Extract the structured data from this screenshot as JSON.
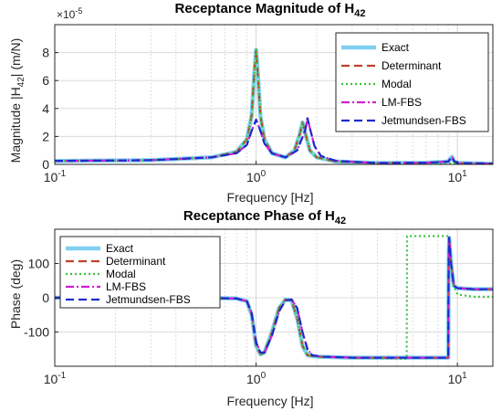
{
  "chart_data": [
    {
      "type": "line",
      "title": "Receptance Magnitude of ",
      "title_symbol": "H",
      "title_subscript": "42",
      "xlabel": "Frequency [Hz]",
      "ylabel": "Magnitude  |H",
      "ylabel_subscript": "42",
      "ylabel_unit": "|  (m/N)",
      "x_scale": "log",
      "xlim": [
        0.1,
        15
      ],
      "ylim": [
        0,
        10
      ],
      "y_exponent_label": "×10",
      "y_exponent_power": "-5",
      "x_ticks": [
        {
          "value": 0.1,
          "base": "10",
          "power": "-1"
        },
        {
          "value": 1,
          "base": "10",
          "power": "0"
        },
        {
          "value": 10,
          "base": "10",
          "power": "1"
        }
      ],
      "y_ticks": [
        0,
        2,
        4,
        6,
        8
      ],
      "grid": true,
      "legend_position": "top-right",
      "series": [
        {
          "name": "Exact",
          "color": "#7fd0f0",
          "style": "solid",
          "x": [
            0.1,
            0.3,
            0.6,
            0.8,
            0.9,
            0.95,
            0.98,
            1.0,
            1.02,
            1.05,
            1.1,
            1.2,
            1.4,
            1.55,
            1.65,
            1.7,
            1.75,
            1.85,
            2.0,
            2.5,
            4,
            7,
            9,
            9.4,
            9.6,
            10,
            15
          ],
          "y": [
            0.25,
            0.3,
            0.5,
            0.9,
            1.8,
            3.5,
            6.5,
            8.2,
            6.5,
            3.5,
            1.8,
            0.8,
            0.5,
            1.0,
            2.2,
            3.0,
            2.3,
            1.0,
            0.5,
            0.2,
            0.1,
            0.12,
            0.2,
            0.55,
            0.25,
            0.1,
            0.05
          ]
        },
        {
          "name": "Determinant",
          "color": "#c0402a",
          "style": "dash",
          "x": [
            0.1,
            0.3,
            0.6,
            0.8,
            0.9,
            0.95,
            0.98,
            1.0,
            1.02,
            1.05,
            1.1,
            1.2,
            1.4,
            1.55,
            1.65,
            1.7,
            1.75,
            1.85,
            2.0,
            2.5,
            4,
            7,
            9,
            9.4,
            9.6,
            10,
            15
          ],
          "y": [
            0.25,
            0.3,
            0.5,
            0.9,
            1.8,
            3.5,
            6.5,
            8.2,
            6.5,
            3.5,
            1.8,
            0.8,
            0.5,
            1.0,
            2.2,
            3.0,
            2.3,
            1.0,
            0.5,
            0.2,
            0.1,
            0.12,
            0.2,
            0.55,
            0.25,
            0.1,
            0.05
          ]
        },
        {
          "name": "Modal",
          "color": "#3cc43c",
          "style": "dot",
          "x": [
            0.1,
            0.3,
            0.6,
            0.8,
            0.9,
            0.95,
            0.98,
            1.0,
            1.02,
            1.05,
            1.1,
            1.2,
            1.4,
            1.55,
            1.65,
            1.7,
            1.75,
            1.85,
            2.0,
            2.5,
            4,
            7,
            15
          ],
          "y": [
            0.25,
            0.3,
            0.5,
            0.9,
            1.8,
            3.5,
            6.5,
            8.2,
            6.5,
            3.5,
            1.8,
            0.8,
            0.5,
            1.0,
            2.2,
            3.0,
            2.3,
            1.0,
            0.5,
            0.2,
            0.1,
            0.08,
            0.05
          ]
        },
        {
          "name": "LM-FBS",
          "color": "#d01ed0",
          "style": "dashdot",
          "x": [
            0.1,
            0.3,
            0.6,
            0.8,
            0.9,
            0.95,
            1.0,
            1.05,
            1.1,
            1.2,
            1.4,
            1.6,
            1.75,
            1.8,
            1.85,
            1.95,
            2.1,
            2.5,
            4,
            7,
            9,
            9.4,
            9.6,
            10,
            15
          ],
          "y": [
            0.25,
            0.3,
            0.5,
            0.8,
            1.4,
            2.4,
            3.2,
            2.4,
            1.5,
            0.8,
            0.5,
            1.0,
            2.4,
            3.3,
            2.6,
            1.3,
            0.6,
            0.25,
            0.1,
            0.12,
            0.2,
            0.55,
            0.25,
            0.1,
            0.05
          ]
        },
        {
          "name": "Jetmundsen-FBS",
          "color": "#1c2bd0",
          "style": "dash",
          "x": [
            0.1,
            0.3,
            0.6,
            0.8,
            0.9,
            0.95,
            1.0,
            1.05,
            1.1,
            1.2,
            1.4,
            1.6,
            1.75,
            1.8,
            1.85,
            1.95,
            2.1,
            2.5,
            4,
            7,
            9,
            9.4,
            9.6,
            10,
            15
          ],
          "y": [
            0.25,
            0.3,
            0.5,
            0.8,
            1.4,
            2.4,
            3.2,
            2.4,
            1.5,
            0.8,
            0.5,
            1.0,
            2.4,
            3.3,
            2.6,
            1.3,
            0.6,
            0.25,
            0.1,
            0.12,
            0.2,
            0.55,
            0.25,
            0.1,
            0.05
          ]
        }
      ]
    },
    {
      "type": "line",
      "title": "Receptance Phase of ",
      "title_symbol": "H",
      "title_subscript": "42",
      "xlabel": "Frequency [Hz]",
      "ylabel": "Phase (deg)",
      "x_scale": "log",
      "xlim": [
        0.1,
        15
      ],
      "ylim": [
        -200,
        200
      ],
      "x_ticks": [
        {
          "value": 0.1,
          "base": "10",
          "power": "-1"
        },
        {
          "value": 1,
          "base": "10",
          "power": "0"
        },
        {
          "value": 10,
          "base": "10",
          "power": "1"
        }
      ],
      "y_ticks": [
        -100,
        0,
        100
      ],
      "grid": true,
      "legend_position": "top-left",
      "series": [
        {
          "name": "Exact",
          "color": "#7fd0f0",
          "style": "solid",
          "x": [
            0.1,
            0.5,
            0.8,
            0.9,
            0.95,
            1.0,
            1.05,
            1.1,
            1.2,
            1.3,
            1.4,
            1.5,
            1.6,
            1.7,
            1.8,
            2.0,
            3,
            5,
            8,
            9.0,
            9.05,
            9.1,
            9.3,
            9.6,
            10,
            12,
            15
          ],
          "y": [
            0,
            0,
            -2,
            -10,
            -50,
            -140,
            -165,
            -160,
            -100,
            -30,
            -5,
            -8,
            -60,
            -140,
            -168,
            -172,
            -175,
            -175,
            -175,
            -175,
            120,
            175,
            100,
            35,
            28,
            25,
            25
          ]
        },
        {
          "name": "Determinant",
          "color": "#c0402a",
          "style": "dash",
          "x": [
            0.1,
            0.5,
            0.8,
            0.9,
            0.95,
            1.0,
            1.05,
            1.1,
            1.2,
            1.3,
            1.4,
            1.5,
            1.6,
            1.7,
            1.8,
            2.0,
            3,
            5,
            8,
            9.0,
            9.05,
            9.1,
            9.3,
            9.6,
            10,
            12,
            15
          ],
          "y": [
            0,
            0,
            -2,
            -10,
            -50,
            -140,
            -165,
            -160,
            -100,
            -30,
            -5,
            -8,
            -60,
            -140,
            -168,
            -172,
            -175,
            -175,
            -175,
            -175,
            120,
            175,
            100,
            35,
            28,
            25,
            25
          ]
        },
        {
          "name": "Modal",
          "color": "#3cc43c",
          "style": "dot",
          "x": [
            0.1,
            0.5,
            0.8,
            0.9,
            0.95,
            1.0,
            1.05,
            1.1,
            1.2,
            1.3,
            1.4,
            1.5,
            1.6,
            1.7,
            1.8,
            2.0,
            3,
            5.6,
            5.62,
            7,
            9.0,
            9.2,
            9.5,
            10,
            12,
            15
          ],
          "y": [
            0,
            0,
            -2,
            -10,
            -50,
            -140,
            -165,
            -160,
            -100,
            -30,
            -5,
            -8,
            -60,
            -140,
            -168,
            -172,
            -175,
            -178,
            180,
            180,
            180,
            120,
            40,
            10,
            3,
            3
          ]
        },
        {
          "name": "LM-FBS",
          "color": "#d01ed0",
          "style": "dashdot",
          "x": [
            0.1,
            0.5,
            0.8,
            0.9,
            0.95,
            1.0,
            1.05,
            1.1,
            1.2,
            1.3,
            1.4,
            1.5,
            1.6,
            1.7,
            1.8,
            1.9,
            2.1,
            3,
            5,
            8,
            9.0,
            9.05,
            9.1,
            9.3,
            9.6,
            10,
            12,
            15
          ],
          "y": [
            0,
            0,
            -2,
            -10,
            -45,
            -130,
            -160,
            -160,
            -110,
            -40,
            -8,
            -5,
            -30,
            -100,
            -150,
            -168,
            -172,
            -175,
            -175,
            -175,
            -175,
            120,
            175,
            100,
            35,
            28,
            25,
            25
          ]
        },
        {
          "name": "Jetmundsen-FBS",
          "color": "#1c2bd0",
          "style": "dash",
          "x": [
            0.1,
            0.5,
            0.8,
            0.9,
            0.95,
            1.0,
            1.05,
            1.1,
            1.2,
            1.3,
            1.4,
            1.5,
            1.6,
            1.7,
            1.8,
            1.9,
            2.1,
            3,
            5,
            8,
            9.0,
            9.05,
            9.1,
            9.3,
            9.6,
            10,
            12,
            15
          ],
          "y": [
            0,
            0,
            -2,
            -10,
            -45,
            -130,
            -160,
            -160,
            -110,
            -40,
            -8,
            -5,
            -30,
            -100,
            -150,
            -168,
            -172,
            -175,
            -175,
            -175,
            -175,
            120,
            175,
            100,
            35,
            28,
            25,
            25
          ]
        }
      ]
    }
  ]
}
